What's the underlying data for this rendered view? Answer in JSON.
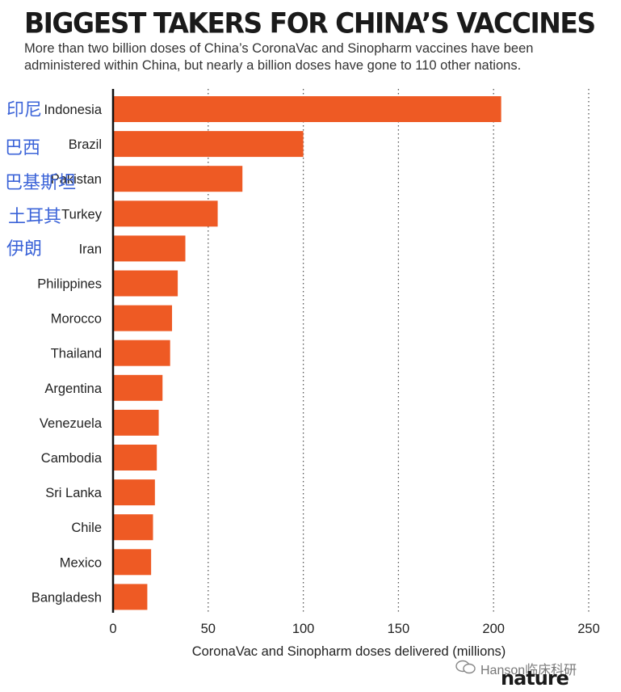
{
  "header": {
    "title": "BIGGEST TAKERS FOR CHINA’S VACCINES",
    "subtitle": "More than two billion doses of China’s CoronaVac and Sinopharm vaccines have been administered within China, but nearly a billion doses have gone to 110 other nations."
  },
  "chart_data": {
    "type": "bar",
    "orientation": "horizontal",
    "categories": [
      "Indonesia",
      "Brazil",
      "Pakistan",
      "Turkey",
      "Iran",
      "Philippines",
      "Morocco",
      "Thailand",
      "Argentina",
      "Venezuela",
      "Cambodia",
      "Sri Lanka",
      "Chile",
      "Mexico",
      "Bangladesh"
    ],
    "values": [
      204,
      100,
      68,
      55,
      38,
      34,
      31,
      30,
      26,
      24,
      23,
      22,
      21,
      20,
      18
    ],
    "xlabel": "CoronaVac and Sinopharm doses delivered (millions)",
    "xticks": [
      0,
      50,
      100,
      150,
      200,
      250
    ],
    "xlim": [
      0,
      250
    ],
    "grid": "vertical-dotted",
    "bar_color": "#ee5a24"
  },
  "annotations": {
    "chinese_labels": [
      "印尼",
      "巴西",
      "巴基斯坦",
      "土耳其",
      "伊朗"
    ],
    "chinese_color": "#3c64d8"
  },
  "footer": {
    "watermark": "Hanson临床科研",
    "brand": "nature"
  }
}
